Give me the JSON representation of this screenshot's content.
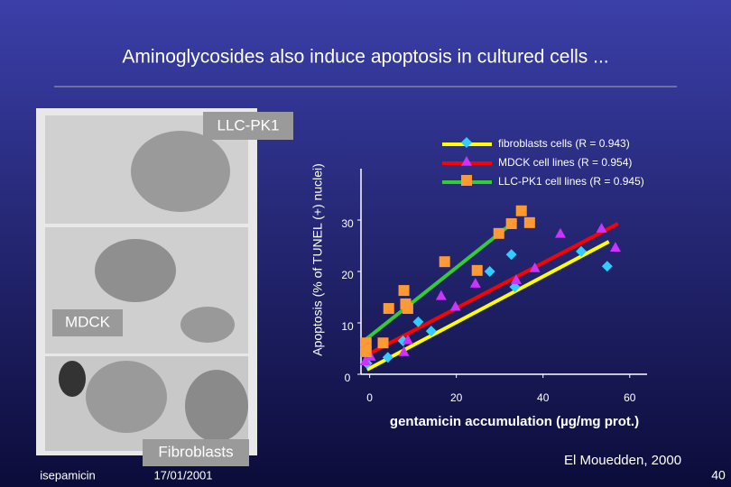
{
  "slide": {
    "title": "Aminoglycosides also induce apoptosis in cultured cells ...",
    "panel_labels": [
      "LLC-PK1",
      "MDCK",
      "Fibroblasts"
    ],
    "footer_left": "isepamicin",
    "footer_date": "17/01/2001",
    "citation": "El Mouedden, 2000",
    "page_number": "40"
  },
  "chart_data": {
    "type": "scatter",
    "x_label": "gentamicin accumulation (µg/mg prot.)",
    "y_label": "Apoptosis (% of TUNEL (+) nuclei)",
    "xlim": [
      -2,
      64
    ],
    "ylim": [
      0,
      40
    ],
    "xticks": [
      0,
      20,
      40,
      60
    ],
    "yticks": [
      0,
      10,
      20,
      30
    ],
    "series": [
      {
        "name": "fibroblasts cells (R = 0.943)",
        "color": "#33ccff",
        "marker": "diamond",
        "x": [
          -0.6,
          4.2,
          7.7,
          11.2,
          14.2,
          27.7,
          33.5,
          32.7,
          48.8,
          54.8
        ],
        "values": [
          2.1,
          3.3,
          6.5,
          10.2,
          8.4,
          20,
          17,
          23.3,
          23.9,
          21
        ],
        "fit": {
          "color": "#ffff00",
          "x": [
            -0.6,
            55.2
          ],
          "y": [
            0.9,
            25.8
          ]
        }
      },
      {
        "name": "MDCK cell lines (R = 0.954)",
        "color": "#cc33ff",
        "marker": "triangle",
        "x": [
          -1,
          0.2,
          7.9,
          8.8,
          16.5,
          19.8,
          24.4,
          33.8,
          38.1,
          44,
          53.5,
          56.7
        ],
        "values": [
          2.6,
          3.5,
          4.4,
          6.7,
          15.3,
          13.2,
          17.7,
          18.4,
          20.7,
          27.4,
          28.4,
          24.7
        ],
        "fit": {
          "color": "#ff0000",
          "x": [
            -1.2,
            57.3
          ],
          "y": [
            3.5,
            29.3
          ]
        }
      },
      {
        "name": "LLC-PK1 cell lines (R = 0.945)",
        "color": "#ff9933",
        "marker": "square",
        "x": [
          -0.8,
          -0.8,
          3.1,
          4.4,
          8.3,
          8.8,
          7.9,
          17.3,
          24.8,
          29.8,
          32.7,
          35,
          36.9
        ],
        "values": [
          6.1,
          4.4,
          6.1,
          12.8,
          13.7,
          12.8,
          16.3,
          21.9,
          20.2,
          27.4,
          29.3,
          31.8,
          29.5
        ],
        "fit": {
          "color": "#33cc33",
          "x": [
            -1,
            33.8
          ],
          "y": [
            6.7,
            30
          ]
        }
      }
    ]
  }
}
